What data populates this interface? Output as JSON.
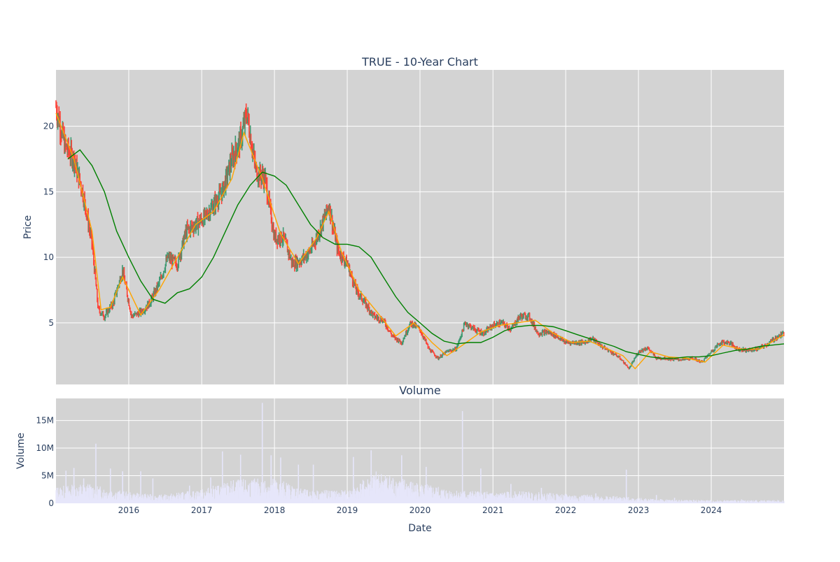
{
  "chart_data": [
    {
      "type": "line",
      "title": "TRUE - 10-Year Chart",
      "xlabel": "",
      "ylabel": "Price",
      "ylim": [
        0.3,
        24.3
      ],
      "xlim": [
        "2015-01-01",
        "2024-12-31"
      ],
      "yticks": [
        5,
        10,
        15,
        20
      ],
      "grid": true,
      "background": "#d3d3d3",
      "series": [
        {
          "kind": "candlestick",
          "up_color": "#3d9970",
          "down_color": "#ff4136",
          "x": [
            "2015-01-01",
            "2015-02-15",
            "2015-04-01",
            "2015-05-15",
            "2015-07-01",
            "2015-08-01",
            "2015-09-01",
            "2015-10-15",
            "2015-12-01",
            "2016-01-15",
            "2016-03-01",
            "2016-04-15",
            "2016-06-01",
            "2016-07-15",
            "2016-09-01",
            "2016-10-15",
            "2016-12-01",
            "2017-01-15",
            "2017-03-01",
            "2017-04-15",
            "2017-06-01",
            "2017-07-15",
            "2017-08-15",
            "2017-10-01",
            "2017-11-15",
            "2018-01-01",
            "2018-02-15",
            "2018-04-01",
            "2018-05-15",
            "2018-07-01",
            "2018-08-15",
            "2018-10-01",
            "2018-11-15",
            "2019-01-01",
            "2019-02-15",
            "2019-04-01",
            "2019-05-15",
            "2019-07-01",
            "2019-08-15",
            "2019-10-01",
            "2019-11-15",
            "2020-01-01",
            "2020-02-15",
            "2020-04-01",
            "2020-05-15",
            "2020-07-01",
            "2020-08-15",
            "2020-10-01",
            "2020-11-15",
            "2021-01-01",
            "2021-02-15",
            "2021-04-01",
            "2021-05-15",
            "2021-07-01",
            "2021-08-15",
            "2021-10-01",
            "2021-11-15",
            "2022-01-01",
            "2022-02-15",
            "2022-04-01",
            "2022-05-15",
            "2022-07-01",
            "2022-08-15",
            "2022-10-01",
            "2022-11-15",
            "2023-01-01",
            "2023-02-15",
            "2023-04-01",
            "2023-05-15",
            "2023-07-01",
            "2023-08-15",
            "2023-10-01",
            "2023-11-15",
            "2024-01-01",
            "2024-02-15",
            "2024-04-01",
            "2024-05-15",
            "2024-07-01",
            "2024-08-15",
            "2024-10-01",
            "2024-11-15",
            "2024-12-31"
          ],
          "close": [
            21.5,
            18.5,
            17.5,
            15.0,
            11.0,
            6.0,
            5.5,
            6.5,
            9.0,
            5.5,
            5.8,
            6.5,
            8.0,
            10.0,
            9.5,
            12.0,
            12.5,
            13.0,
            14.0,
            15.0,
            17.5,
            19.0,
            21.0,
            16.5,
            16.0,
            11.5,
            11.5,
            9.5,
            9.8,
            10.5,
            12.0,
            14.0,
            10.5,
            9.5,
            7.5,
            6.5,
            5.5,
            5.2,
            4.0,
            3.5,
            5.0,
            4.5,
            3.0,
            2.3,
            2.8,
            3.0,
            5.0,
            4.5,
            4.2,
            4.8,
            5.0,
            4.5,
            5.5,
            5.5,
            4.2,
            4.3,
            4.0,
            3.5,
            3.5,
            3.5,
            3.8,
            3.2,
            2.8,
            2.3,
            1.5,
            2.8,
            3.1,
            2.3,
            2.3,
            2.2,
            2.2,
            2.3,
            2.0,
            2.8,
            3.5,
            3.5,
            3.0,
            2.9,
            3.0,
            3.3,
            3.8,
            4.2
          ]
        },
        {
          "name": "",
          "color": "#ffa500",
          "x": [
            "2015-01-01",
            "2015-04-01",
            "2015-07-01",
            "2015-08-15",
            "2015-10-01",
            "2015-12-01",
            "2016-03-01",
            "2016-06-01",
            "2016-09-01",
            "2016-12-01",
            "2017-03-01",
            "2017-06-01",
            "2017-08-01",
            "2017-11-01",
            "2018-02-01",
            "2018-05-01",
            "2018-08-01",
            "2018-10-01",
            "2018-12-01",
            "2019-03-01",
            "2019-06-01",
            "2019-09-01",
            "2019-12-01",
            "2020-03-01",
            "2020-05-15",
            "2020-08-01",
            "2020-11-01",
            "2021-02-01",
            "2021-05-01",
            "2021-08-01",
            "2021-11-01",
            "2022-02-01",
            "2022-05-01",
            "2022-08-01",
            "2022-10-15",
            "2022-12-15",
            "2023-03-01",
            "2023-06-01",
            "2023-09-01",
            "2023-12-01",
            "2024-03-01",
            "2024-06-01",
            "2024-09-01",
            "2024-12-31"
          ],
          "y": [
            21.0,
            17.5,
            12.0,
            6.0,
            6.2,
            8.5,
            5.6,
            7.5,
            10.0,
            12.5,
            13.5,
            16.0,
            19.5,
            16.0,
            11.8,
            9.5,
            11.5,
            13.5,
            10.5,
            7.5,
            5.8,
            4.0,
            5.0,
            3.5,
            2.5,
            3.3,
            4.3,
            4.8,
            5.0,
            5.2,
            4.2,
            3.5,
            3.6,
            3.0,
            2.5,
            1.5,
            2.8,
            2.4,
            2.3,
            2.0,
            3.3,
            3.0,
            3.0,
            4.1
          ]
        },
        {
          "name": "",
          "color": "#008000",
          "x": [
            "2015-01-01",
            "2015-03-01",
            "2015-05-01",
            "2015-07-01",
            "2015-09-01",
            "2015-11-01",
            "2016-01-01",
            "2016-03-01",
            "2016-05-01",
            "2016-07-01",
            "2016-09-01",
            "2016-11-01",
            "2017-01-01",
            "2017-03-01",
            "2017-05-01",
            "2017-07-01",
            "2017-09-01",
            "2017-11-01",
            "2018-01-01",
            "2018-03-01",
            "2018-05-01",
            "2018-07-01",
            "2018-09-01",
            "2018-11-01",
            "2019-01-01",
            "2019-03-01",
            "2019-05-01",
            "2019-07-01",
            "2019-09-01",
            "2019-11-01",
            "2020-01-01",
            "2020-03-01",
            "2020-05-01",
            "2020-07-01",
            "2020-09-01",
            "2020-11-01",
            "2021-01-01",
            "2021-03-01",
            "2021-05-01",
            "2021-07-01",
            "2021-09-01",
            "2021-11-01",
            "2022-01-01",
            "2022-03-01",
            "2022-05-01",
            "2022-07-01",
            "2022-09-01",
            "2022-11-01",
            "2023-01-01",
            "2023-03-01",
            "2023-05-01",
            "2023-07-01",
            "2023-09-01",
            "2023-11-01",
            "2024-01-01",
            "2024-03-01",
            "2024-05-01",
            "2024-07-01",
            "2024-09-01",
            "2024-12-31"
          ],
          "y": [
            null,
            17.5,
            18.2,
            17.0,
            15.0,
            12.0,
            10.0,
            8.2,
            6.8,
            6.5,
            7.3,
            7.6,
            8.5,
            10.0,
            12.0,
            14.0,
            15.5,
            16.5,
            16.2,
            15.5,
            14.0,
            12.5,
            11.5,
            11.0,
            11.0,
            10.8,
            10.0,
            8.5,
            7.0,
            5.8,
            5.0,
            4.2,
            3.6,
            3.4,
            3.5,
            3.5,
            3.9,
            4.4,
            4.7,
            4.8,
            4.8,
            4.7,
            4.4,
            4.1,
            3.8,
            3.5,
            3.2,
            2.8,
            2.6,
            2.4,
            2.3,
            2.3,
            2.4,
            2.4,
            2.5,
            2.7,
            2.9,
            3.0,
            3.2,
            3.4
          ]
        }
      ]
    },
    {
      "type": "bar",
      "title": "Volume",
      "xlabel": "Date",
      "ylabel": "Volume",
      "ylim": [
        0,
        19000000
      ],
      "xlim": [
        "2015-01-01",
        "2024-12-31"
      ],
      "yticks": [
        0,
        5000000,
        10000000,
        15000000
      ],
      "ytick_labels": [
        "0",
        "5M",
        "10M",
        "15M"
      ],
      "xtick_labels": [
        "2016",
        "2017",
        "2018",
        "2019",
        "2020",
        "2021",
        "2022",
        "2023",
        "2024"
      ],
      "xticks": [
        "2016-01-01",
        "2017-01-01",
        "2018-01-01",
        "2019-01-01",
        "2020-01-01",
        "2021-01-01",
        "2022-01-01",
        "2023-01-01",
        "2024-01-01"
      ],
      "grid": true,
      "background": "#d3d3d3",
      "bar_color": "#e6e6fa",
      "spikes": [
        {
          "x": "2015-02-20",
          "v": 5900000
        },
        {
          "x": "2015-04-01",
          "v": 6400000
        },
        {
          "x": "2015-05-20",
          "v": 4500000
        },
        {
          "x": "2015-07-20",
          "v": 10800000
        },
        {
          "x": "2015-10-01",
          "v": 6300000
        },
        {
          "x": "2015-12-01",
          "v": 5800000
        },
        {
          "x": "2016-03-01",
          "v": 5800000
        },
        {
          "x": "2016-05-01",
          "v": 4500000
        },
        {
          "x": "2016-11-01",
          "v": 3200000
        },
        {
          "x": "2017-02-15",
          "v": 4700000
        },
        {
          "x": "2017-04-15",
          "v": 9400000
        },
        {
          "x": "2017-07-15",
          "v": 8800000
        },
        {
          "x": "2017-11-01",
          "v": 18200000
        },
        {
          "x": "2017-12-15",
          "v": 8700000
        },
        {
          "x": "2018-02-01",
          "v": 8300000
        },
        {
          "x": "2018-05-01",
          "v": 7000000
        },
        {
          "x": "2018-07-15",
          "v": 7000000
        },
        {
          "x": "2019-02-01",
          "v": 8400000
        },
        {
          "x": "2019-05-01",
          "v": 9600000
        },
        {
          "x": "2019-08-01",
          "v": 4500000
        },
        {
          "x": "2019-10-01",
          "v": 8700000
        },
        {
          "x": "2020-02-01",
          "v": 6600000
        },
        {
          "x": "2020-08-01",
          "v": 16700000
        },
        {
          "x": "2020-11-01",
          "v": 6300000
        },
        {
          "x": "2021-04-01",
          "v": 3500000
        },
        {
          "x": "2021-09-01",
          "v": 2800000
        },
        {
          "x": "2022-06-01",
          "v": 1800000
        },
        {
          "x": "2022-11-01",
          "v": 6100000
        },
        {
          "x": "2023-04-01",
          "v": 1500000
        },
        {
          "x": "2023-07-01",
          "v": 1000000
        },
        {
          "x": "2024-06-01",
          "v": 700000
        }
      ],
      "baseline": [
        {
          "x": "2015-01-01",
          "v": 1800000
        },
        {
          "x": "2015-06-01",
          "v": 2200000
        },
        {
          "x": "2016-01-01",
          "v": 1200000
        },
        {
          "x": "2016-06-01",
          "v": 900000
        },
        {
          "x": "2017-01-01",
          "v": 1500000
        },
        {
          "x": "2017-06-01",
          "v": 2500000
        },
        {
          "x": "2018-01-01",
          "v": 2800000
        },
        {
          "x": "2018-06-01",
          "v": 1500000
        },
        {
          "x": "2019-01-01",
          "v": 1400000
        },
        {
          "x": "2019-06-01",
          "v": 3500000
        },
        {
          "x": "2020-01-01",
          "v": 2200000
        },
        {
          "x": "2020-06-01",
          "v": 1500000
        },
        {
          "x": "2021-01-01",
          "v": 1200000
        },
        {
          "x": "2021-06-01",
          "v": 1300000
        },
        {
          "x": "2022-01-01",
          "v": 1000000
        },
        {
          "x": "2022-06-01",
          "v": 900000
        },
        {
          "x": "2023-01-01",
          "v": 600000
        },
        {
          "x": "2023-06-01",
          "v": 400000
        },
        {
          "x": "2024-01-01",
          "v": 350000
        },
        {
          "x": "2024-12-31",
          "v": 350000
        }
      ]
    }
  ]
}
